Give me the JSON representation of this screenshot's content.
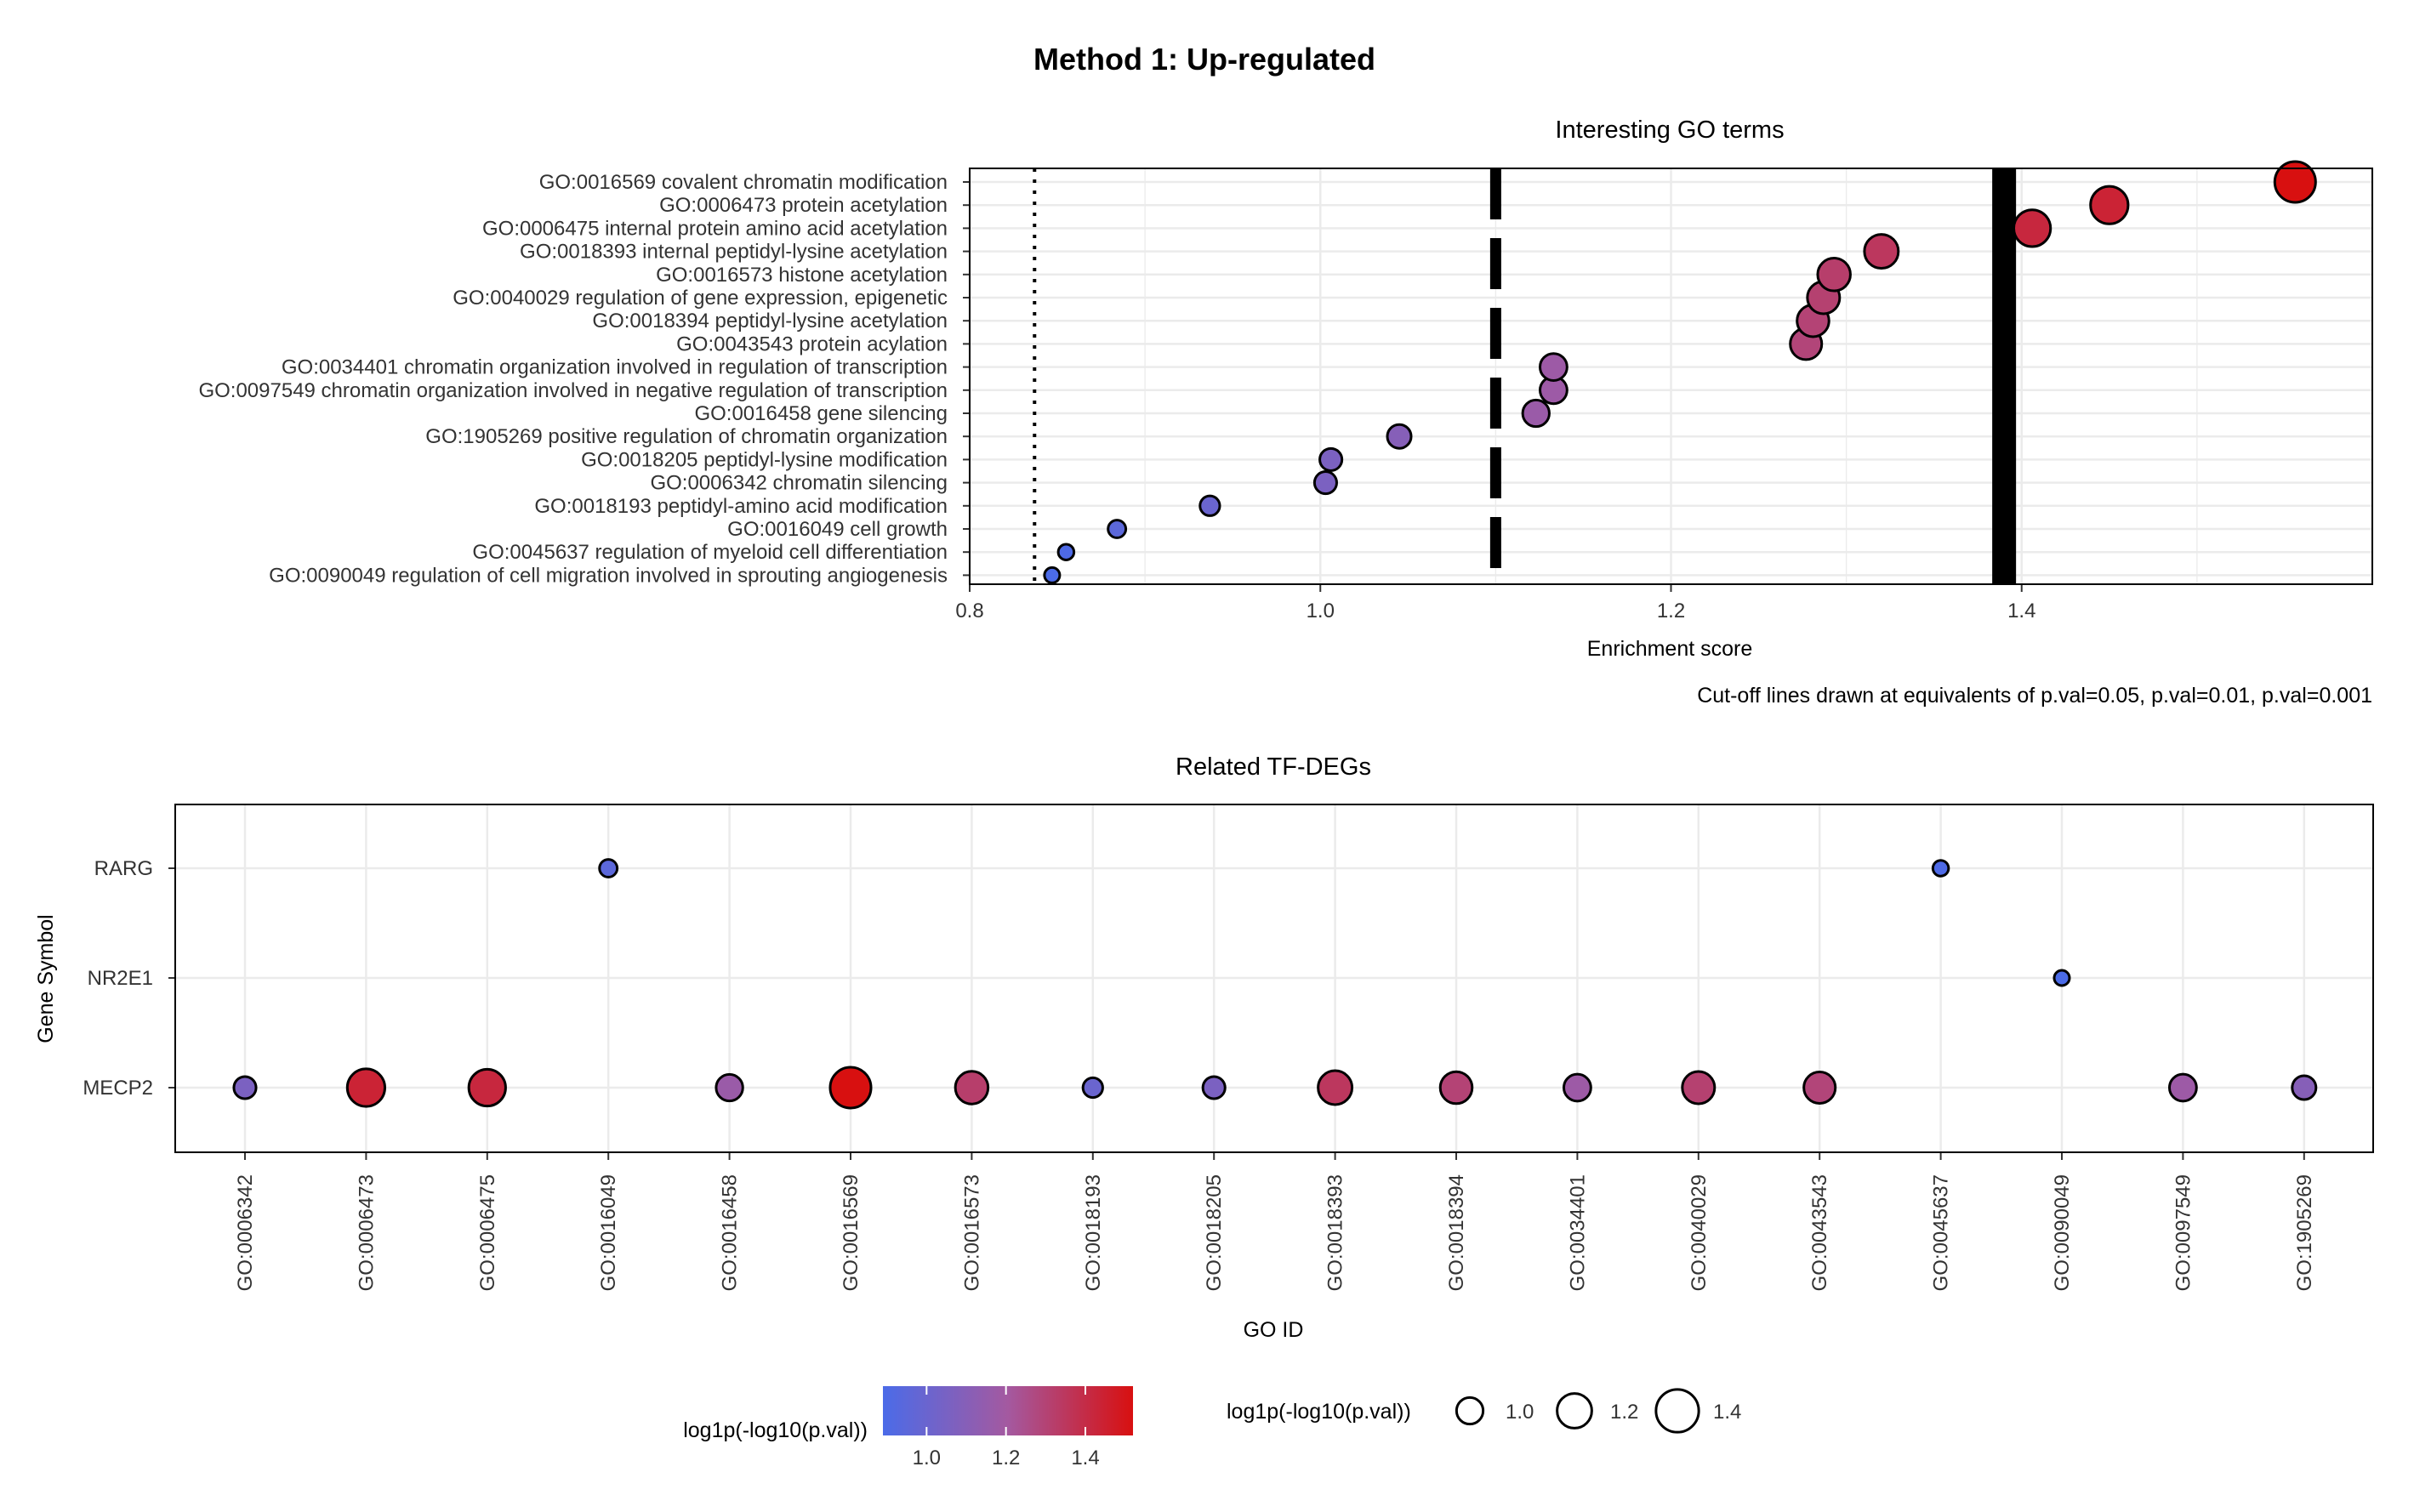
{
  "title": "Method 1: Up-regulated",
  "chart_data": [
    {
      "type": "scatter",
      "title": "Interesting GO terms",
      "xlabel": "Enrichment score",
      "ylabel": "",
      "xlim": [
        0.8,
        1.6
      ],
      "xticks": [
        "0.8",
        "1.0",
        "1.2",
        "1.4"
      ],
      "xtick_values": [
        0.8,
        1.0,
        1.2,
        1.4
      ],
      "grid": true,
      "caption": "Cut-off lines drawn at equivalents of p.val=0.05, p.val=0.01, p.val=0.001",
      "cutoffs": [
        {
          "label": "p.val=0.05",
          "x": 0.837,
          "style": "dotted"
        },
        {
          "label": "p.val=0.01",
          "x": 1.1,
          "style": "dashed"
        },
        {
          "label": "p.val=0.001",
          "x": 1.39,
          "style": "solid"
        }
      ],
      "terms": [
        {
          "label": "GO:0016569 covalent chromatin modification",
          "x": 1.556,
          "value": 1.52
        },
        {
          "label": "GO:0006473 protein acetylation",
          "x": 1.45,
          "value": 1.44
        },
        {
          "label": "GO:0006475 internal protein amino acid acetylation",
          "x": 1.406,
          "value": 1.42
        },
        {
          "label": "GO:0018393 internal peptidyl-lysine acetylation",
          "x": 1.32,
          "value": 1.35
        },
        {
          "label": "GO:0016573 histone acetylation",
          "x": 1.293,
          "value": 1.32
        },
        {
          "label": "GO:0040029 regulation of gene expression, epigenetic",
          "x": 1.287,
          "value": 1.31
        },
        {
          "label": "GO:0018394 peptidyl-lysine acetylation",
          "x": 1.281,
          "value": 1.3
        },
        {
          "label": "GO:0043543 protein acylation",
          "x": 1.277,
          "value": 1.29
        },
        {
          "label": "GO:0034401 chromatin organization involved in regulation of transcription",
          "x": 1.133,
          "value": 1.18
        },
        {
          "label": "GO:0097549 chromatin organization involved in negative regulation of transcription",
          "x": 1.133,
          "value": 1.18
        },
        {
          "label": "GO:0016458 gene silencing",
          "x": 1.123,
          "value": 1.17
        },
        {
          "label": "GO:1905269 positive regulation of chromatin organization",
          "x": 1.045,
          "value": 1.1
        },
        {
          "label": "GO:0018205 peptidyl-lysine modification",
          "x": 1.006,
          "value": 1.06
        },
        {
          "label": "GO:0006342 chromatin silencing",
          "x": 1.003,
          "value": 1.06
        },
        {
          "label": "GO:0018193 peptidyl-amino acid modification",
          "x": 0.937,
          "value": 1.0
        },
        {
          "label": "GO:0016049 cell growth",
          "x": 0.884,
          "value": 0.95
        },
        {
          "label": "GO:0045637 regulation of myeloid cell differentiation",
          "x": 0.855,
          "value": 0.9
        },
        {
          "label": "GO:0090049 regulation of cell migration involved in sprouting angiogenesis",
          "x": 0.847,
          "value": 0.89
        }
      ]
    },
    {
      "type": "scatter",
      "title": "Related TF-DEGs",
      "xlabel": "GO ID",
      "ylabel": "Gene Symbol",
      "grid": true,
      "categories": [
        "GO:0006342",
        "GO:0006473",
        "GO:0006475",
        "GO:0016049",
        "GO:0016458",
        "GO:0016569",
        "GO:0016573",
        "GO:0018193",
        "GO:0018205",
        "GO:0018393",
        "GO:0018394",
        "GO:0034401",
        "GO:0040029",
        "GO:0043543",
        "GO:0045637",
        "GO:0090049",
        "GO:0097549",
        "GO:1905269"
      ],
      "genes": [
        "RARG",
        "NR2E1",
        "MECP2"
      ],
      "points": [
        {
          "gene": "RARG",
          "go": "GO:0016049",
          "value": 0.95
        },
        {
          "gene": "RARG",
          "go": "GO:0045637",
          "value": 0.9
        },
        {
          "gene": "NR2E1",
          "go": "GO:0090049",
          "value": 0.89
        },
        {
          "gene": "MECP2",
          "go": "GO:0006342",
          "value": 1.06
        },
        {
          "gene": "MECP2",
          "go": "GO:0006473",
          "value": 1.44
        },
        {
          "gene": "MECP2",
          "go": "GO:0006475",
          "value": 1.42
        },
        {
          "gene": "MECP2",
          "go": "GO:0016458",
          "value": 1.17
        },
        {
          "gene": "MECP2",
          "go": "GO:0016569",
          "value": 1.52
        },
        {
          "gene": "MECP2",
          "go": "GO:0016573",
          "value": 1.32
        },
        {
          "gene": "MECP2",
          "go": "GO:0018193",
          "value": 1.0
        },
        {
          "gene": "MECP2",
          "go": "GO:0018205",
          "value": 1.06
        },
        {
          "gene": "MECP2",
          "go": "GO:0018393",
          "value": 1.35
        },
        {
          "gene": "MECP2",
          "go": "GO:0018394",
          "value": 1.3
        },
        {
          "gene": "MECP2",
          "go": "GO:0034401",
          "value": 1.18
        },
        {
          "gene": "MECP2",
          "go": "GO:0040029",
          "value": 1.31
        },
        {
          "gene": "MECP2",
          "go": "GO:0043543",
          "value": 1.29
        },
        {
          "gene": "MECP2",
          "go": "GO:0097549",
          "value": 1.18
        },
        {
          "gene": "MECP2",
          "go": "GO:1905269",
          "value": 1.1
        }
      ]
    }
  ],
  "legend": {
    "color_title": "log1p(-log10(p.val))",
    "size_title": "log1p(-log10(p.val))",
    "color_ticks": [
      "1.0",
      "1.2",
      "1.4"
    ],
    "size_ticks": [
      "1.0",
      "1.2",
      "1.4"
    ],
    "value_range": [
      0.89,
      1.52
    ],
    "colors": {
      "low": "#4b6be8",
      "mid": "#a459a0",
      "high": "#d81010"
    }
  }
}
